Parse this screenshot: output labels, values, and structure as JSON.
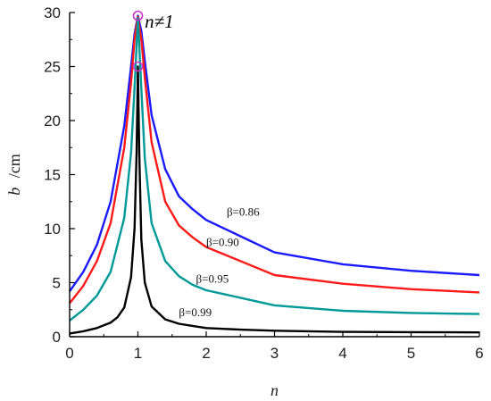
{
  "chart_data": {
    "type": "line",
    "title": "",
    "xlabel": "n",
    "ylabel": "b",
    "ylabel_unit": "/cm",
    "xlim": [
      0,
      6
    ],
    "ylim": [
      0,
      30
    ],
    "xticks": [
      0,
      1,
      2,
      3,
      4,
      5,
      6
    ],
    "yticks": [
      0,
      5,
      10,
      15,
      20,
      25,
      30
    ],
    "grid": false,
    "annotation": "n≠1",
    "series": [
      {
        "name": "β=0.86",
        "color": "#1a1aff",
        "x": [
          0,
          0.2,
          0.4,
          0.6,
          0.8,
          0.9,
          0.95,
          1.0,
          1.05,
          1.1,
          1.2,
          1.4,
          1.6,
          1.8,
          2.0,
          2.5,
          3.0,
          4.0,
          5.0,
          6.0
        ],
        "y": [
          4.2,
          6.0,
          8.5,
          12.5,
          19.5,
          25.0,
          28.0,
          29.7,
          28.3,
          25.5,
          20.5,
          15.5,
          13.0,
          11.8,
          10.8,
          9.3,
          7.8,
          6.7,
          6.1,
          5.7
        ]
      },
      {
        "name": "β=0.90",
        "color": "#ff1a1a",
        "x": [
          0,
          0.2,
          0.4,
          0.6,
          0.8,
          0.9,
          0.95,
          1.0,
          1.05,
          1.1,
          1.2,
          1.4,
          1.6,
          1.8,
          2.0,
          2.5,
          3.0,
          4.0,
          5.0,
          6.0
        ],
        "y": [
          3.1,
          4.7,
          7.0,
          10.5,
          17.5,
          23.5,
          27.5,
          29.6,
          27.5,
          24.0,
          18.0,
          12.5,
          10.3,
          9.2,
          8.3,
          7.0,
          5.7,
          4.9,
          4.4,
          4.1
        ]
      },
      {
        "name": "β=0.95",
        "color": "#009999",
        "x": [
          0,
          0.2,
          0.4,
          0.6,
          0.8,
          0.9,
          0.95,
          1.0,
          1.05,
          1.1,
          1.2,
          1.4,
          1.6,
          1.8,
          2.0,
          2.5,
          3.0,
          4.0,
          5.0,
          6.0
        ],
        "y": [
          1.5,
          2.5,
          3.8,
          6.0,
          11.0,
          17.0,
          23.0,
          29.5,
          23.0,
          16.5,
          10.5,
          7.0,
          5.6,
          4.8,
          4.3,
          3.6,
          2.9,
          2.4,
          2.2,
          2.1
        ]
      },
      {
        "name": "β=0.99",
        "color": "#000000",
        "x": [
          0,
          0.2,
          0.4,
          0.6,
          0.7,
          0.8,
          0.9,
          0.95,
          0.98,
          1.0,
          1.02,
          1.05,
          1.1,
          1.2,
          1.4,
          1.6,
          1.8,
          2.0,
          2.5,
          3.0,
          4.0,
          5.0,
          6.0
        ],
        "y": [
          0.3,
          0.5,
          0.8,
          1.3,
          1.8,
          2.7,
          5.5,
          10.0,
          17.0,
          25.0,
          17.0,
          9.0,
          5.0,
          2.8,
          1.6,
          1.2,
          1.0,
          0.8,
          0.65,
          0.55,
          0.45,
          0.42,
          0.4
        ]
      }
    ],
    "peak_markers": [
      {
        "x": 1.0,
        "y": 29.7,
        "color": "#cc33cc"
      },
      {
        "x": 1.0,
        "y": 25.0,
        "color": "#cc33cc"
      }
    ]
  }
}
